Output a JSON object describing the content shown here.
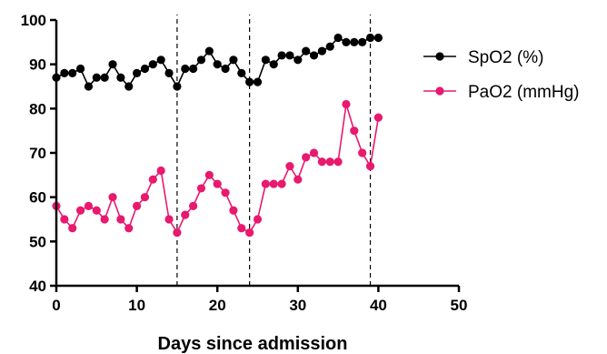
{
  "chart_data": {
    "type": "line",
    "xlabel": "Days since admission",
    "ylabel": "",
    "xlim": [
      0,
      50
    ],
    "ylim": [
      40,
      100
    ],
    "xticks": [
      0,
      10,
      20,
      30,
      40,
      50
    ],
    "yticks": [
      40,
      50,
      60,
      70,
      80,
      90,
      100
    ],
    "grid": false,
    "legend_position": "top-right",
    "vlines": [
      15,
      24,
      39
    ],
    "series": [
      {
        "name": "SpO2 (%)",
        "color": "#000000",
        "x": [
          0,
          1,
          2,
          3,
          4,
          5,
          6,
          7,
          8,
          9,
          10,
          11,
          12,
          13,
          14,
          15,
          16,
          17,
          18,
          19,
          20,
          21,
          22,
          23,
          24,
          25,
          26,
          27,
          28,
          29,
          30,
          31,
          32,
          33,
          34,
          35,
          36,
          37,
          38,
          39,
          40
        ],
        "y": [
          87,
          88,
          88,
          89,
          85,
          87,
          87,
          90,
          87,
          85,
          88,
          89,
          90,
          91,
          88,
          85,
          89,
          89,
          91,
          93,
          90,
          89,
          91,
          88,
          86,
          86,
          91,
          90,
          92,
          92,
          91,
          93,
          92,
          93,
          94,
          96,
          95,
          95,
          95,
          96,
          96
        ]
      },
      {
        "name": "PaO2 (mmHg)",
        "color": "#e8196e",
        "x": [
          0,
          1,
          2,
          3,
          4,
          5,
          6,
          7,
          8,
          9,
          10,
          11,
          12,
          13,
          14,
          15,
          16,
          17,
          18,
          19,
          20,
          21,
          22,
          23,
          24,
          25,
          26,
          27,
          28,
          29,
          30,
          31,
          32,
          33,
          34,
          35,
          36,
          37,
          38,
          39,
          40
        ],
        "y": [
          58,
          55,
          53,
          57,
          58,
          57,
          55,
          60,
          55,
          53,
          58,
          60,
          64,
          66,
          55,
          52,
          56,
          58,
          62,
          65,
          63,
          61,
          57,
          53,
          52,
          55,
          63,
          63,
          63,
          67,
          64,
          69,
          70,
          68,
          68,
          68,
          81,
          75,
          70,
          67,
          78
        ]
      }
    ]
  }
}
